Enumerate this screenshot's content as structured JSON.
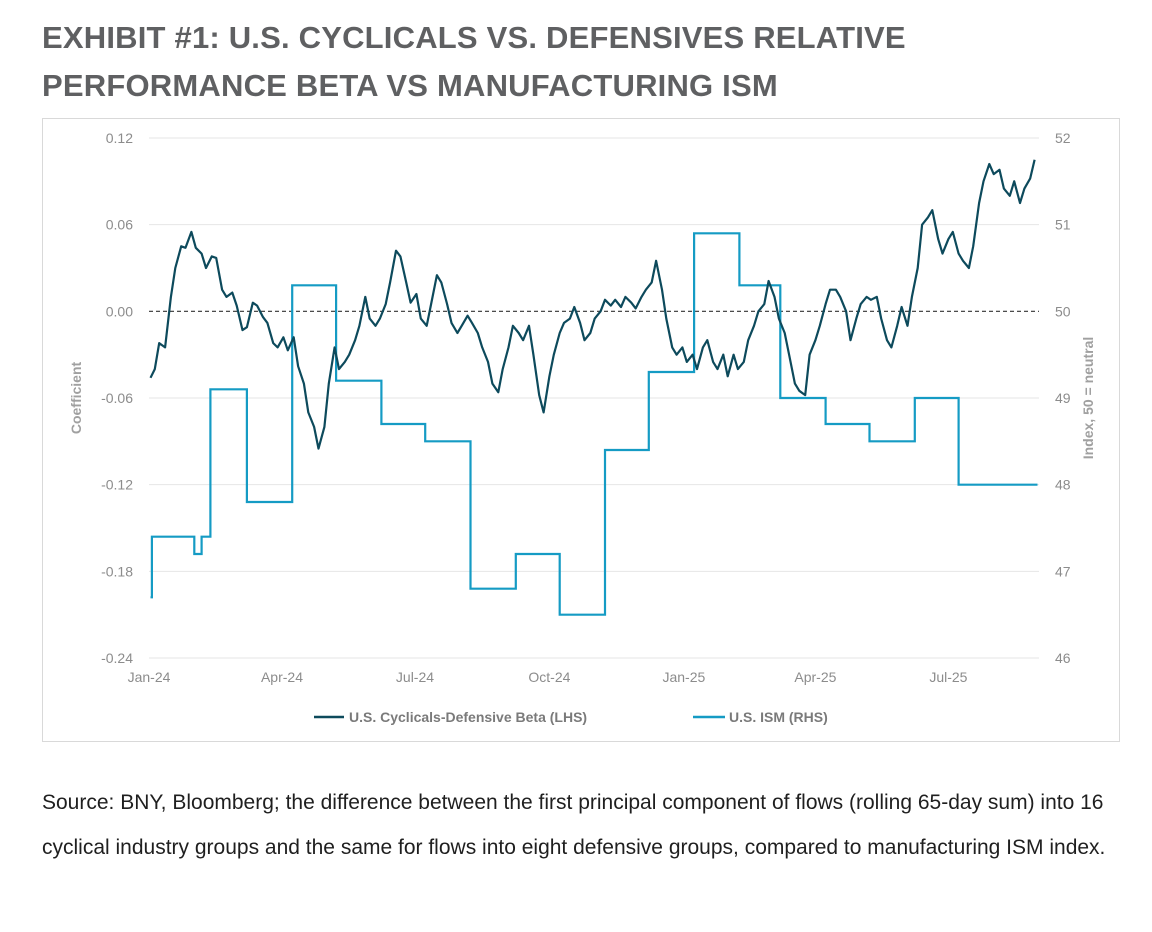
{
  "title_line1": "EXHIBIT #1: U.S. CYCLICALS VS. DEFENSIVES RELATIVE",
  "title_line2": "PERFORMANCE BETA VS MANUFACTURING ISM",
  "source_note": "Source: BNY, Bloomberg; the difference between the first principal component of flows (rolling 65-day sum) into 16 cyclical industry groups and the same for flows into eight defensive groups, compared to manufacturing ISM index.",
  "colors": {
    "beta": "#0d4a5c",
    "ism": "#159bc4",
    "grid": "#e6e6e6",
    "zero_line": "#333333"
  },
  "chart_data": {
    "type": "line",
    "title": "",
    "xlabel": "",
    "x_tick_labels": [
      "Jan-24",
      "Apr-24",
      "Jul-24",
      "Oct-24",
      "Jan-25",
      "Apr-25",
      "Jul-25"
    ],
    "y_left": {
      "label": "Coefficient",
      "ticks": [
        "0.12",
        "0.06",
        "0.00",
        "-0.06",
        "-0.12",
        "-0.18",
        "-0.24"
      ],
      "lim": [
        -0.24,
        0.12
      ]
    },
    "y_right": {
      "label": "Index, 50 = neutral",
      "ticks": [
        "52",
        "51",
        "50",
        "49",
        "48",
        "47",
        "46"
      ],
      "lim": [
        46,
        52
      ]
    },
    "reference_line": {
      "axis": "left",
      "value": 0.0,
      "style": "dashed"
    },
    "grid": true,
    "legend_position": "bottom",
    "series": [
      {
        "name": "U.S. Cyclicals-Defensive Beta (LHS)",
        "axis": "left",
        "points": [
          [
            "2024-01-02",
            -0.046
          ],
          [
            "2024-01-05",
            -0.04
          ],
          [
            "2024-01-08",
            -0.022
          ],
          [
            "2024-01-12",
            -0.025
          ],
          [
            "2024-01-16",
            0.01
          ],
          [
            "2024-01-19",
            0.03
          ],
          [
            "2024-01-23",
            0.045
          ],
          [
            "2024-01-26",
            0.044
          ],
          [
            "2024-01-30",
            0.055
          ],
          [
            "2024-02-02",
            0.044
          ],
          [
            "2024-02-06",
            0.04
          ],
          [
            "2024-02-09",
            0.03
          ],
          [
            "2024-02-13",
            0.038
          ],
          [
            "2024-02-16",
            0.037
          ],
          [
            "2024-02-20",
            0.015
          ],
          [
            "2024-02-23",
            0.01
          ],
          [
            "2024-02-27",
            0.013
          ],
          [
            "2024-03-01",
            0.004
          ],
          [
            "2024-03-05",
            -0.013
          ],
          [
            "2024-03-08",
            -0.011
          ],
          [
            "2024-03-12",
            0.006
          ],
          [
            "2024-03-15",
            0.004
          ],
          [
            "2024-03-19",
            -0.004
          ],
          [
            "2024-03-22",
            -0.008
          ],
          [
            "2024-03-26",
            -0.022
          ],
          [
            "2024-03-29",
            -0.025
          ],
          [
            "2024-04-02",
            -0.018
          ],
          [
            "2024-04-05",
            -0.027
          ],
          [
            "2024-04-09",
            -0.018
          ],
          [
            "2024-04-12",
            -0.038
          ],
          [
            "2024-04-16",
            -0.05
          ],
          [
            "2024-04-19",
            -0.07
          ],
          [
            "2024-04-23",
            -0.08
          ],
          [
            "2024-04-26",
            -0.095
          ],
          [
            "2024-04-30",
            -0.08
          ],
          [
            "2024-05-03",
            -0.05
          ],
          [
            "2024-05-07",
            -0.025
          ],
          [
            "2024-05-10",
            -0.04
          ],
          [
            "2024-05-14",
            -0.035
          ],
          [
            "2024-05-17",
            -0.03
          ],
          [
            "2024-05-21",
            -0.02
          ],
          [
            "2024-05-24",
            -0.01
          ],
          [
            "2024-05-28",
            0.01
          ],
          [
            "2024-05-31",
            -0.005
          ],
          [
            "2024-06-04",
            -0.01
          ],
          [
            "2024-06-07",
            -0.005
          ],
          [
            "2024-06-11",
            0.005
          ],
          [
            "2024-06-14",
            0.02
          ],
          [
            "2024-06-18",
            0.042
          ],
          [
            "2024-06-21",
            0.038
          ],
          [
            "2024-06-25",
            0.02
          ],
          [
            "2024-06-28",
            0.006
          ],
          [
            "2024-07-02",
            0.012
          ],
          [
            "2024-07-05",
            -0.005
          ],
          [
            "2024-07-09",
            -0.01
          ],
          [
            "2024-07-12",
            0.005
          ],
          [
            "2024-07-16",
            0.025
          ],
          [
            "2024-07-19",
            0.02
          ],
          [
            "2024-07-23",
            0.005
          ],
          [
            "2024-07-26",
            -0.008
          ],
          [
            "2024-07-30",
            -0.015
          ],
          [
            "2024-08-02",
            -0.01
          ],
          [
            "2024-08-06",
            -0.003
          ],
          [
            "2024-08-09",
            -0.008
          ],
          [
            "2024-08-13",
            -0.015
          ],
          [
            "2024-08-16",
            -0.025
          ],
          [
            "2024-08-20",
            -0.035
          ],
          [
            "2024-08-23",
            -0.05
          ],
          [
            "2024-08-27",
            -0.056
          ],
          [
            "2024-08-30",
            -0.04
          ],
          [
            "2024-09-03",
            -0.025
          ],
          [
            "2024-09-06",
            -0.01
          ],
          [
            "2024-09-10",
            -0.015
          ],
          [
            "2024-09-13",
            -0.02
          ],
          [
            "2024-09-17",
            -0.01
          ],
          [
            "2024-09-20",
            -0.03
          ],
          [
            "2024-09-24",
            -0.058
          ],
          [
            "2024-09-27",
            -0.07
          ],
          [
            "2024-10-01",
            -0.045
          ],
          [
            "2024-10-04",
            -0.03
          ],
          [
            "2024-10-08",
            -0.015
          ],
          [
            "2024-10-11",
            -0.008
          ],
          [
            "2024-10-15",
            -0.005
          ],
          [
            "2024-10-18",
            0.003
          ],
          [
            "2024-10-22",
            -0.008
          ],
          [
            "2024-10-25",
            -0.02
          ],
          [
            "2024-10-29",
            -0.015
          ],
          [
            "2024-11-01",
            -0.005
          ],
          [
            "2024-11-05",
            0.0
          ],
          [
            "2024-11-08",
            0.008
          ],
          [
            "2024-11-12",
            0.004
          ],
          [
            "2024-11-15",
            0.008
          ],
          [
            "2024-11-19",
            0.003
          ],
          [
            "2024-11-22",
            0.01
          ],
          [
            "2024-11-26",
            0.006
          ],
          [
            "2024-11-29",
            0.002
          ],
          [
            "2024-12-03",
            0.01
          ],
          [
            "2024-12-06",
            0.015
          ],
          [
            "2024-12-10",
            0.02
          ],
          [
            "2024-12-13",
            0.035
          ],
          [
            "2024-12-17",
            0.015
          ],
          [
            "2024-12-20",
            -0.005
          ],
          [
            "2024-12-24",
            -0.025
          ],
          [
            "2024-12-27",
            -0.03
          ],
          [
            "2024-12-31",
            -0.025
          ],
          [
            "2025-01-03",
            -0.035
          ],
          [
            "2025-01-07",
            -0.03
          ],
          [
            "2025-01-10",
            -0.04
          ],
          [
            "2025-01-14",
            -0.025
          ],
          [
            "2025-01-17",
            -0.02
          ],
          [
            "2025-01-21",
            -0.035
          ],
          [
            "2025-01-24",
            -0.04
          ],
          [
            "2025-01-28",
            -0.03
          ],
          [
            "2025-01-31",
            -0.045
          ],
          [
            "2025-02-04",
            -0.03
          ],
          [
            "2025-02-07",
            -0.04
          ],
          [
            "2025-02-11",
            -0.035
          ],
          [
            "2025-02-14",
            -0.02
          ],
          [
            "2025-02-18",
            -0.01
          ],
          [
            "2025-02-21",
            0.0
          ],
          [
            "2025-02-25",
            0.005
          ],
          [
            "2025-02-28",
            0.021
          ],
          [
            "2025-03-04",
            0.01
          ],
          [
            "2025-03-07",
            -0.005
          ],
          [
            "2025-03-11",
            -0.015
          ],
          [
            "2025-03-14",
            -0.03
          ],
          [
            "2025-03-18",
            -0.05
          ],
          [
            "2025-03-21",
            -0.055
          ],
          [
            "2025-03-25",
            -0.058
          ],
          [
            "2025-03-28",
            -0.03
          ],
          [
            "2025-04-01",
            -0.02
          ],
          [
            "2025-04-04",
            -0.01
          ],
          [
            "2025-04-08",
            0.005
          ],
          [
            "2025-04-11",
            0.015
          ],
          [
            "2025-04-15",
            0.015
          ],
          [
            "2025-04-18",
            0.01
          ],
          [
            "2025-04-22",
            0.0
          ],
          [
            "2025-04-25",
            -0.02
          ],
          [
            "2025-04-29",
            -0.005
          ],
          [
            "2025-05-02",
            0.005
          ],
          [
            "2025-05-06",
            0.01
          ],
          [
            "2025-05-09",
            0.008
          ],
          [
            "2025-05-13",
            0.01
          ],
          [
            "2025-05-16",
            -0.005
          ],
          [
            "2025-05-20",
            -0.02
          ],
          [
            "2025-05-23",
            -0.025
          ],
          [
            "2025-05-27",
            -0.01
          ],
          [
            "2025-05-30",
            0.003
          ],
          [
            "2025-06-03",
            -0.01
          ],
          [
            "2025-06-06",
            0.01
          ],
          [
            "2025-06-10",
            0.03
          ],
          [
            "2025-06-13",
            0.06
          ],
          [
            "2025-06-17",
            0.065
          ],
          [
            "2025-06-20",
            0.07
          ],
          [
            "2025-06-24",
            0.05
          ],
          [
            "2025-06-27",
            0.04
          ],
          [
            "2025-07-01",
            0.05
          ],
          [
            "2025-07-04",
            0.055
          ],
          [
            "2025-07-08",
            0.04
          ],
          [
            "2025-07-11",
            0.035
          ],
          [
            "2025-07-15",
            0.03
          ],
          [
            "2025-07-18",
            0.045
          ],
          [
            "2025-07-22",
            0.075
          ],
          [
            "2025-07-25",
            0.09
          ],
          [
            "2025-07-29",
            0.102
          ],
          [
            "2025-08-01",
            0.095
          ],
          [
            "2025-08-05",
            0.098
          ],
          [
            "2025-08-08",
            0.085
          ],
          [
            "2025-08-12",
            0.08
          ],
          [
            "2025-08-15",
            0.09
          ],
          [
            "2025-08-19",
            0.075
          ],
          [
            "2025-08-22",
            0.085
          ],
          [
            "2025-08-26",
            0.092
          ],
          [
            "2025-08-29",
            0.105
          ]
        ]
      },
      {
        "name": "U.S. ISM (RHS)",
        "axis": "right",
        "steps": [
          [
            "2024-01-02",
            46.7
          ],
          [
            "2024-01-03",
            47.4
          ],
          [
            "2024-02-01",
            47.2
          ],
          [
            "2024-02-06",
            47.4
          ],
          [
            "2024-02-12",
            49.1
          ],
          [
            "2024-03-08",
            47.8
          ],
          [
            "2024-04-08",
            50.3
          ],
          [
            "2024-05-08",
            49.2
          ],
          [
            "2024-06-08",
            48.7
          ],
          [
            "2024-07-08",
            48.5
          ],
          [
            "2024-08-08",
            46.8
          ],
          [
            "2024-09-08",
            47.2
          ],
          [
            "2024-10-08",
            46.5
          ],
          [
            "2024-11-08",
            48.4
          ],
          [
            "2024-12-08",
            49.3
          ],
          [
            "2025-01-08",
            50.9
          ],
          [
            "2025-02-08",
            50.3
          ],
          [
            "2025-03-08",
            49.0
          ],
          [
            "2025-04-08",
            48.7
          ],
          [
            "2025-05-08",
            48.5
          ],
          [
            "2025-06-08",
            49.0
          ],
          [
            "2025-07-08",
            48.0
          ],
          [
            "2025-08-31",
            48.0
          ]
        ]
      }
    ]
  }
}
